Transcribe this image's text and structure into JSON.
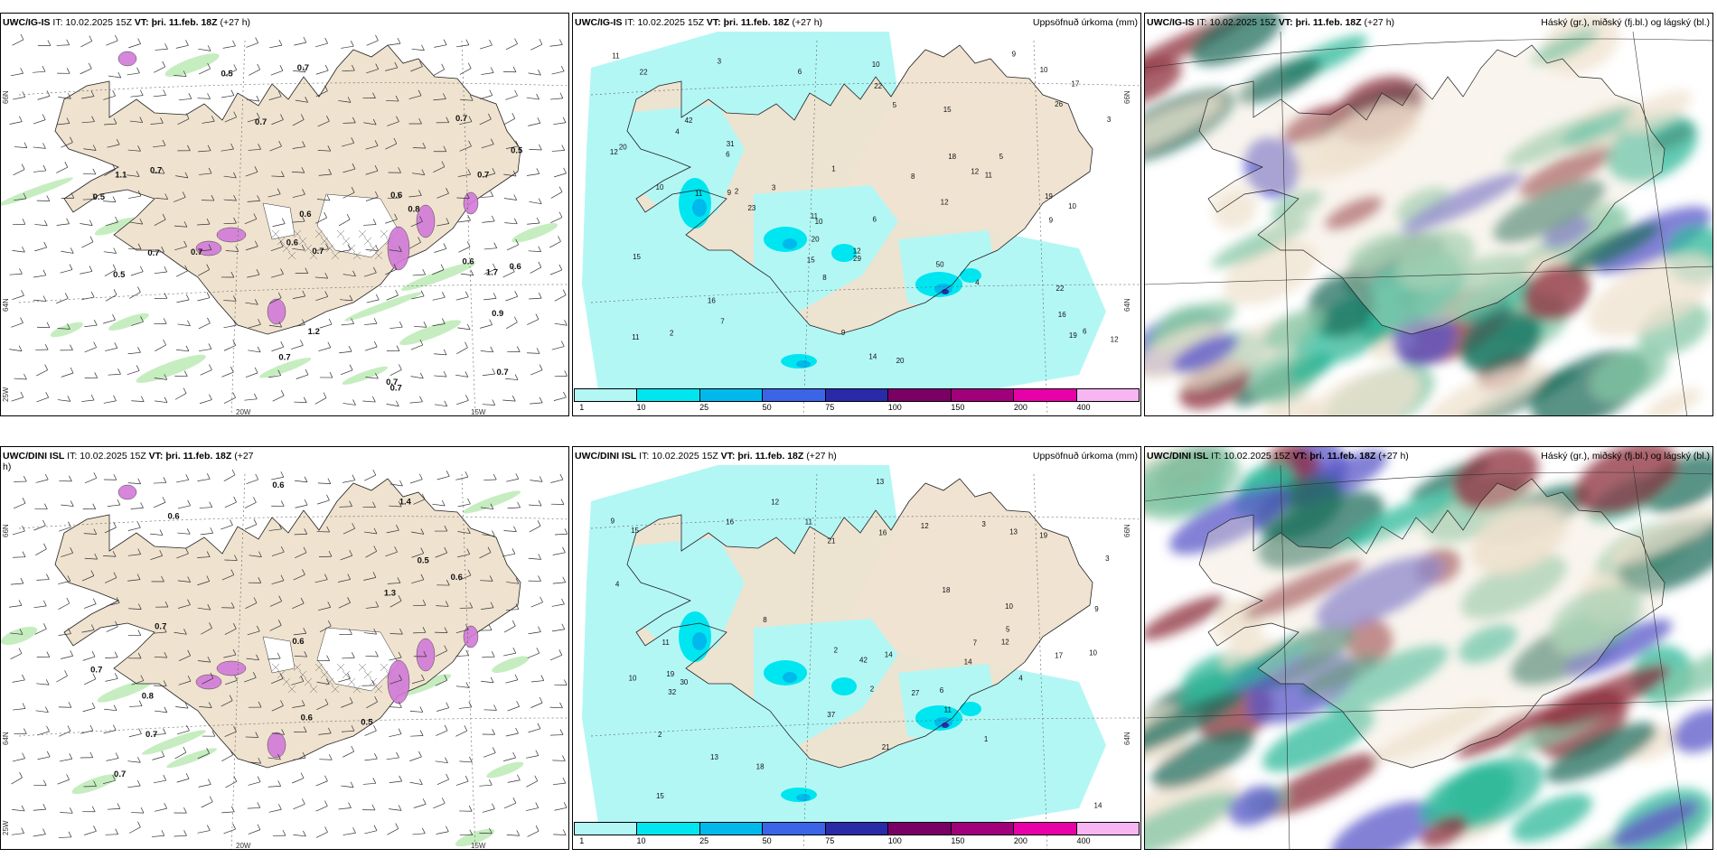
{
  "colors": {
    "land": "#efe2cf",
    "precip_light": "#b3f7f5",
    "ocean": "#ffffff",
    "wind_green": "#b8e8b0",
    "snow_purple": "#d27ad8",
    "cloud_high": "#8c2b3b",
    "cloud_mid": "#5a55c8",
    "cloud_low": "#2fb89a"
  },
  "colorbar": {
    "colors": [
      "#b3f7f5",
      "#00e6f0",
      "#00b9ec",
      "#3b64e8",
      "#2a2aa8",
      "#7a0066",
      "#a0007a",
      "#e800a8",
      "#f7b5f2"
    ],
    "labels": [
      "1",
      "10",
      "25",
      "50",
      "75",
      "100",
      "150",
      "200",
      "400"
    ]
  },
  "panels": [
    {
      "id": "top-left",
      "model": "UWC/IG-IS",
      "it_label": "IT:",
      "it_value": "10.02.2025 15Z",
      "vt_label": "VT:",
      "vt_value": "þri. 11.feb. 18Z",
      "lead": "(+27 h)",
      "right_title": "",
      "lat_labels": [
        "66N",
        "64N"
      ],
      "lon_labels": [
        "25W",
        "20W",
        "15W"
      ],
      "values": [
        "0.9",
        "0.6",
        "0.7",
        "0.7",
        "0.7",
        "0.7",
        "0.5",
        "0.7",
        "0.7",
        "0.7",
        "0.7",
        "0.6",
        "0.8",
        "0.7",
        "1.2",
        "1.1",
        "0.5",
        "0.5",
        "0.7",
        "0.5",
        "0.6",
        "0.6",
        "1.7",
        "0.7",
        "0.7",
        "0.6"
      ]
    },
    {
      "id": "top-middle",
      "model": "UWC/IG-IS",
      "it_label": "IT:",
      "it_value": "10.02.2025 15Z",
      "vt_label": "VT:",
      "vt_value": "þri. 11.feb. 18Z",
      "lead": "(+27 h)",
      "right_title": "Uppsöfnuð úrkoma (mm)",
      "lat_labels": [
        "66N",
        "64N"
      ],
      "lon_labels": [],
      "values": [
        "2",
        "6",
        "8",
        "4",
        "10",
        "6",
        "5",
        "9",
        "10",
        "9",
        "11",
        "17",
        "15",
        "12",
        "11",
        "9",
        "10",
        "16",
        "10",
        "12",
        "3",
        "20",
        "15",
        "22",
        "23",
        "6",
        "3",
        "19",
        "29",
        "50",
        "15",
        "20",
        "14",
        "11",
        "26",
        "42",
        "31",
        "20",
        "16",
        "18",
        "19",
        "22",
        "12",
        "11",
        "12",
        "10",
        "9",
        "11",
        "8",
        "12",
        "22",
        "7",
        "6",
        "5",
        "4",
        "3",
        "2",
        "1"
      ]
    },
    {
      "id": "top-right",
      "model": "UWC/IG-IS",
      "it_label": "IT:",
      "it_value": "10.02.2025 15Z",
      "vt_label": "VT:",
      "vt_value": "þri. 11.feb. 18Z",
      "lead": "(+27 h)",
      "right_title": "Háský (gr.), miðský (fj.bl.) og lágský (bl.)",
      "lat_labels": [],
      "lon_labels": [],
      "values": []
    },
    {
      "id": "bottom-left",
      "model": "UWC/DINI ISL",
      "it_label": "IT:",
      "it_value": "10.02.2025 15Z",
      "vt_label": "VT:",
      "vt_value": "þri. 11.feb. 18Z",
      "lead": "(+27",
      "lead_wrap": "h)",
      "right_title": "",
      "lat_labels": [
        "66N",
        "64N"
      ],
      "lon_labels": [
        "25W",
        "20W",
        "15W"
      ],
      "values": [
        "0.7",
        "1.4",
        "0.6",
        "0.5",
        "0.6",
        "0.7",
        "0.8",
        "0.7",
        "0.6",
        "1.3",
        "0.7",
        "0.6",
        "0.5",
        "0.6"
      ]
    },
    {
      "id": "bottom-middle",
      "model": "UWC/DINI ISL",
      "it_label": "IT:",
      "it_value": "10.02.2025 15Z",
      "vt_label": "VT:",
      "vt_value": "þri. 11.feb. 18Z",
      "lead": "(+27 h)",
      "right_title": "Uppsöfnuð úrkoma (mm)",
      "lat_labels": [
        "66N",
        "64N"
      ],
      "lon_labels": [],
      "values": [
        "2",
        "2",
        "4",
        "9",
        "10",
        "17",
        "12",
        "13",
        "11",
        "15",
        "14",
        "11",
        "18",
        "10",
        "10",
        "14",
        "27",
        "19",
        "18",
        "3",
        "37",
        "42",
        "16",
        "19",
        "14",
        "12",
        "16",
        "30",
        "21",
        "32",
        "12",
        "13",
        "11",
        "8",
        "9",
        "13",
        "21",
        "15",
        "7",
        "6",
        "5",
        "4",
        "3",
        "2",
        "1"
      ]
    },
    {
      "id": "bottom-right",
      "model": "UWC/DINI ISL",
      "it_label": "IT:",
      "it_value": "10.02.2025 15Z",
      "vt_label": "VT:",
      "vt_value": "þri. 11.feb. 18Z",
      "lead": "(+27 h)",
      "right_title": "Háský (gr.), miðský (fj.bl.) og lágský (bl.)",
      "lat_labels": [],
      "lon_labels": [],
      "values": []
    }
  ]
}
